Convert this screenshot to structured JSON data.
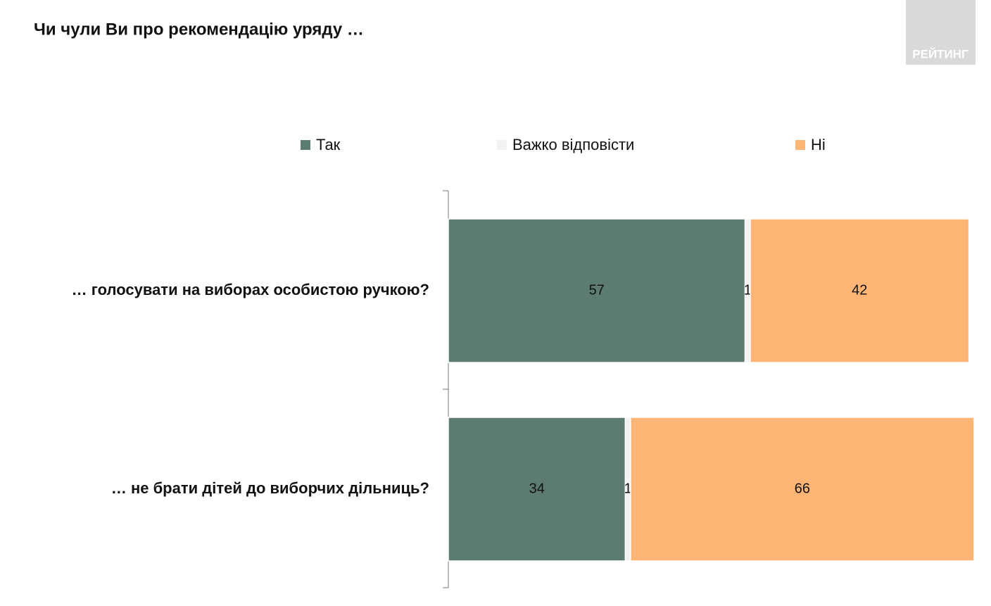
{
  "logo": "РЕЙТИНГ",
  "chart_data": {
    "type": "stacked-barh",
    "title": "Чи чули Ви про рекомендацію уряду …",
    "categories": [
      "… голосувати на виборах особистою ручкою?",
      "… не брати дітей до виборчих дільниць?"
    ],
    "series": [
      {
        "name": "Так",
        "color": "#5b7b73",
        "values": [
          57,
          34
        ]
      },
      {
        "name": "Важко відповісти",
        "color": "#f2f2f2",
        "values": [
          1,
          1
        ]
      },
      {
        "name": "Ні",
        "color": "#fdb576",
        "values": [
          42,
          66
        ]
      }
    ]
  }
}
